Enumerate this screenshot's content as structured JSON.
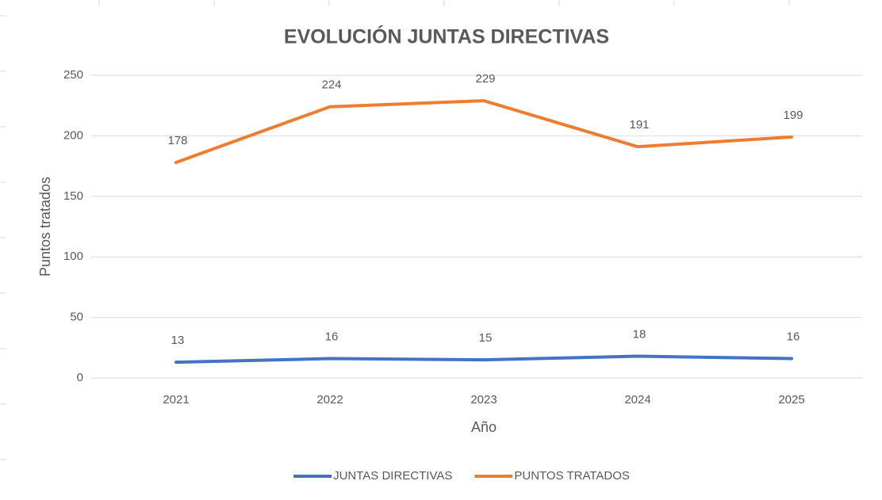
{
  "chart_data": {
    "type": "line",
    "title": "EVOLUCIÓN JUNTAS DIRECTIVAS",
    "xlabel": "Año",
    "ylabel": "Puntos tratados",
    "categories": [
      "2021",
      "2022",
      "2023",
      "2024",
      "2025"
    ],
    "series": [
      {
        "name": "JUNTAS DIRECTIVAS",
        "color": "#4472c4",
        "values": [
          13,
          16,
          15,
          18,
          16
        ]
      },
      {
        "name": "PUNTOS TRATADOS",
        "color": "#ed7d31",
        "values": [
          178,
          224,
          229,
          191,
          199
        ]
      }
    ],
    "ylim": [
      0,
      250
    ],
    "yticks": [
      0,
      50,
      100,
      150,
      200,
      250
    ],
    "grid": true,
    "legend": "bottom",
    "data_labels": true
  }
}
